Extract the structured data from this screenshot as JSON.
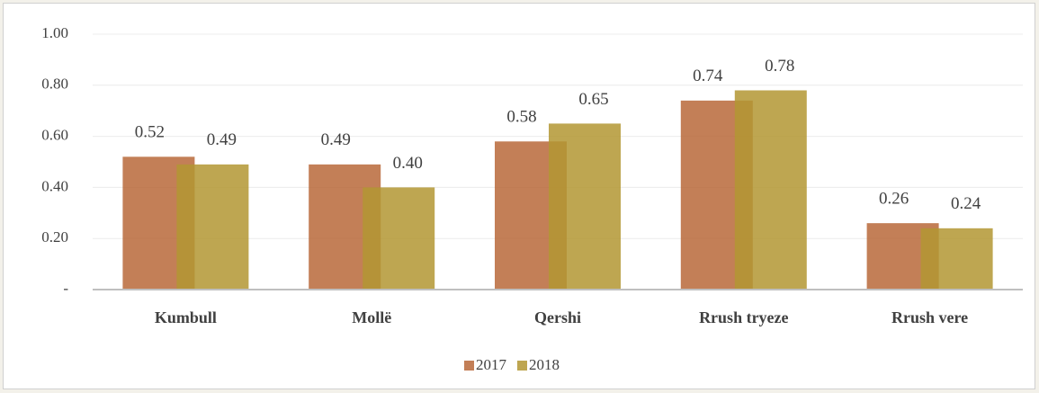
{
  "chart_data": {
    "type": "bar",
    "categories": [
      "Kumbull",
      "Mollë",
      "Qershi",
      "Rrush tryeze",
      "Rrush vere"
    ],
    "series": [
      {
        "name": "2017",
        "color": "#b8693a",
        "values": [
          0.52,
          0.49,
          0.58,
          0.74,
          0.26
        ],
        "value_labels": [
          "0.52",
          "0.49",
          "0.58",
          "0.74",
          "0.26"
        ]
      },
      {
        "name": "2018",
        "color": "#b39632",
        "values": [
          0.49,
          0.4,
          0.65,
          0.78,
          0.24
        ],
        "value_labels": [
          "0.49",
          "0.40",
          "0.65",
          "0.78",
          "0.24"
        ]
      }
    ],
    "ylim": [
      0,
      1
    ],
    "yticks": [
      {
        "value": 0,
        "label": "-"
      },
      {
        "value": 0.2,
        "label": "0.20"
      },
      {
        "value": 0.4,
        "label": "0.40"
      },
      {
        "value": 0.6,
        "label": "0.60"
      },
      {
        "value": 0.8,
        "label": "0.80"
      },
      {
        "value": 1,
        "label": "1.00"
      }
    ],
    "grid": true,
    "legend": "bottom"
  }
}
